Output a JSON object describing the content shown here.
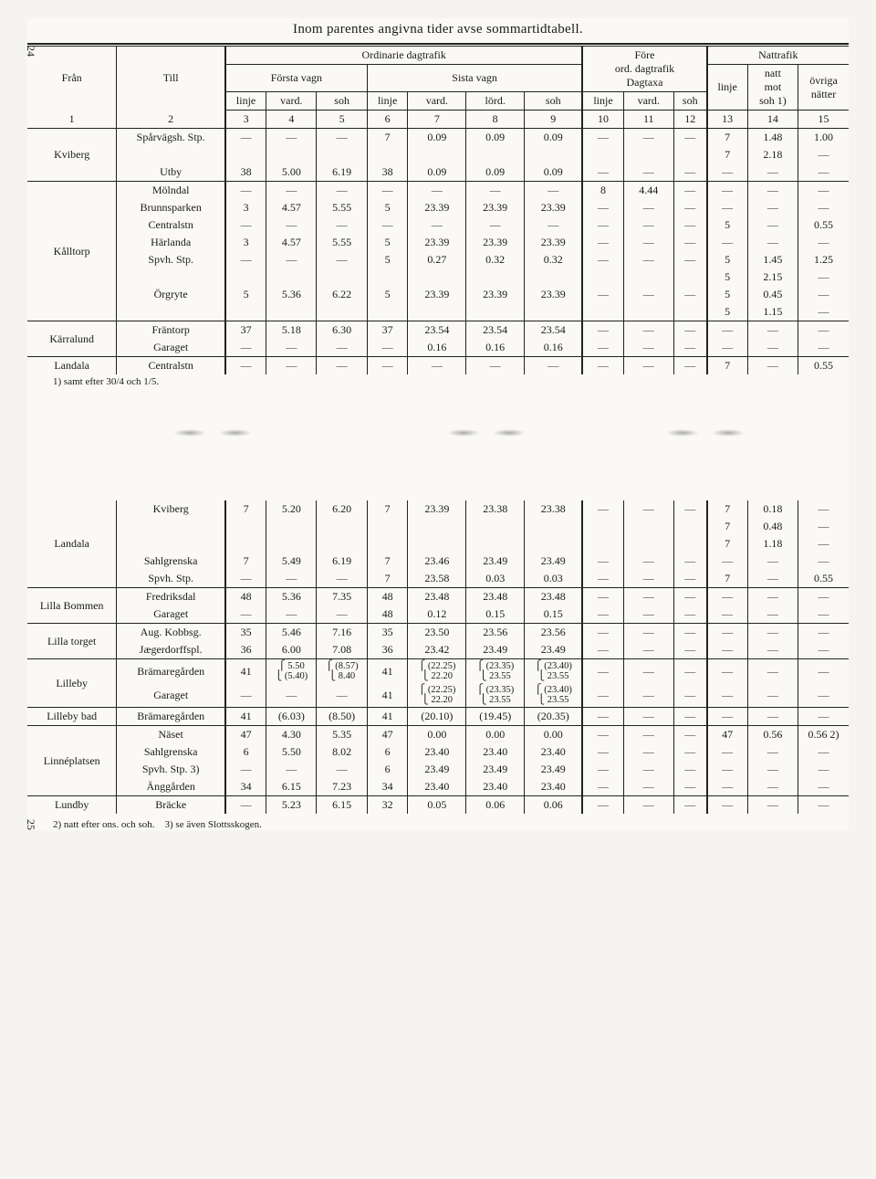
{
  "caption": "Inom parentes angivna tider avse sommartidtabell.",
  "page_left": "24",
  "page_bottom": "25",
  "headers": {
    "fran": "Från",
    "till": "Till",
    "ord": "Ordinarie dagtrafik",
    "forsta": "Första vagn",
    "sista": "Sista vagn",
    "fore1": "Före",
    "fore2": "ord. dagtrafik",
    "fore3": "Dagtaxa",
    "natt": "Nattrafik",
    "linje": "linje",
    "vard": "vard.",
    "soh": "soh",
    "lord": "lörd.",
    "nattmot1": "natt",
    "nattmot2": "mot",
    "nattmot3": "soh 1)",
    "ovriga1": "övriga",
    "ovriga2": "nätter",
    "nums": [
      "1",
      "2",
      "3",
      "4",
      "5",
      "6",
      "7",
      "8",
      "9",
      "10",
      "11",
      "12",
      "13",
      "14",
      "15"
    ]
  },
  "footnote_top": "1) samt efter 30/4 och 1/5.",
  "footnote_bot_a": "2) natt efter ons. och soh.",
  "footnote_bot_b": "3) se även Slottsskogen.",
  "groups_top": [
    {
      "from": "Kviberg",
      "rows": [
        {
          "till": "Spårvägsh. Stp.",
          "c": [
            "—",
            "—",
            "—",
            "7",
            "0.09",
            "0.09",
            "0.09",
            "—",
            "—",
            "—",
            "7",
            "1.48",
            "1.00"
          ]
        },
        {
          "till": "",
          "c": [
            "",
            "",
            "",
            "",
            "",
            "",
            "",
            "",
            "",
            "",
            "7",
            "2.18",
            "—"
          ]
        },
        {
          "till": "Utby",
          "c": [
            "38",
            "5.00",
            "6.19",
            "38",
            "0.09",
            "0.09",
            "0.09",
            "—",
            "—",
            "—",
            "—",
            "—",
            "—"
          ]
        }
      ]
    },
    {
      "from": "Kålltorp",
      "rows": [
        {
          "till": "Mölndal",
          "c": [
            "—",
            "—",
            "—",
            "—",
            "—",
            "—",
            "—",
            "8",
            "4.44",
            "—",
            "—",
            "—",
            "—"
          ]
        },
        {
          "till": "Brunnsparken",
          "c": [
            "3",
            "4.57",
            "5.55",
            "5",
            "23.39",
            "23.39",
            "23.39",
            "—",
            "—",
            "—",
            "—",
            "—",
            "—"
          ]
        },
        {
          "till": "Centralstn",
          "c": [
            "—",
            "—",
            "—",
            "—",
            "—",
            "—",
            "—",
            "—",
            "—",
            "—",
            "5",
            "—",
            "0.55"
          ]
        },
        {
          "till": "Härlanda",
          "c": [
            "3",
            "4.57",
            "5.55",
            "5",
            "23.39",
            "23.39",
            "23.39",
            "—",
            "—",
            "—",
            "—",
            "—",
            "—"
          ]
        },
        {
          "till": "Spvh.  Stp.",
          "c": [
            "—",
            "—",
            "—",
            "5",
            "0.27",
            "0.32",
            "0.32",
            "—",
            "—",
            "—",
            "5",
            "1.45",
            "1.25"
          ]
        },
        {
          "till": "",
          "c": [
            "",
            "",
            "",
            "",
            "",
            "",
            "",
            "",
            "",
            "",
            "5",
            "2.15",
            "—"
          ]
        },
        {
          "till": "Örgryte",
          "c": [
            "5",
            "5.36",
            "6.22",
            "5",
            "23.39",
            "23.39",
            "23.39",
            "—",
            "—",
            "—",
            "5",
            "0.45",
            "—"
          ]
        },
        {
          "till": "",
          "c": [
            "",
            "",
            "",
            "",
            "",
            "",
            "",
            "",
            "",
            "",
            "5",
            "1.15",
            "—"
          ]
        }
      ]
    },
    {
      "from": "Kärralund",
      "rows": [
        {
          "till": "Fräntorp",
          "c": [
            "37",
            "5.18",
            "6.30",
            "37",
            "23.54",
            "23.54",
            "23.54",
            "—",
            "—",
            "—",
            "—",
            "—",
            "—"
          ]
        },
        {
          "till": "Garaget",
          "c": [
            "—",
            "—",
            "—",
            "—",
            "0.16",
            "0.16",
            "0.16",
            "—",
            "—",
            "—",
            "—",
            "—",
            "—"
          ]
        }
      ]
    },
    {
      "from": "Landala",
      "rows": [
        {
          "till": "Centralstn",
          "c": [
            "—",
            "—",
            "—",
            "—",
            "—",
            "—",
            "—",
            "—",
            "—",
            "—",
            "7",
            "—",
            "0.55"
          ]
        }
      ]
    }
  ],
  "groups_bot": [
    {
      "from": "Landala",
      "rows": [
        {
          "till": "Kviberg",
          "c": [
            "7",
            "5.20",
            "6.20",
            "7",
            "23.39",
            "23.38",
            "23.38",
            "—",
            "—",
            "—",
            "7",
            "0.18",
            "—"
          ]
        },
        {
          "till": "",
          "c": [
            "",
            "",
            "",
            "",
            "",
            "",
            "",
            "",
            "",
            "",
            "7",
            "0.48",
            "—"
          ]
        },
        {
          "till": "",
          "c": [
            "",
            "",
            "",
            "",
            "",
            "",
            "",
            "",
            "",
            "",
            "7",
            "1.18",
            "—"
          ]
        },
        {
          "till": "Sahlgrenska",
          "c": [
            "7",
            "5.49",
            "6.19",
            "7",
            "23.46",
            "23.49",
            "23.49",
            "—",
            "—",
            "—",
            "—",
            "—",
            "—"
          ]
        },
        {
          "till": "Spvh.  Stp.",
          "c": [
            "—",
            "—",
            "—",
            "7",
            "23.58",
            "0.03",
            "0.03",
            "—",
            "—",
            "—",
            "7",
            "—",
            "0.55"
          ]
        }
      ]
    },
    {
      "from": "Lilla Bommen",
      "rows": [
        {
          "till": "Fredriksdal",
          "c": [
            "48",
            "5.36",
            "7.35",
            "48",
            "23.48",
            "23.48",
            "23.48",
            "—",
            "—",
            "—",
            "—",
            "—",
            "—"
          ]
        },
        {
          "till": "Garaget",
          "c": [
            "—",
            "—",
            "—",
            "48",
            "0.12",
            "0.15",
            "0.15",
            "—",
            "—",
            "—",
            "—",
            "—",
            "—"
          ]
        }
      ]
    },
    {
      "from": "Lilla torget",
      "rows": [
        {
          "till": "Aug.  Kobbsg.",
          "c": [
            "35",
            "5.46",
            "7.16",
            "35",
            "23.50",
            "23.56",
            "23.56",
            "—",
            "—",
            "—",
            "—",
            "—",
            "—"
          ]
        },
        {
          "till": "Jægerdorffspl.",
          "c": [
            "36",
            "6.00",
            "7.08",
            "36",
            "23.42",
            "23.49",
            "23.49",
            "—",
            "—",
            "—",
            "—",
            "—",
            "—"
          ]
        }
      ]
    },
    {
      "from": "Lilleby",
      "rows": [
        {
          "till": "Brämaregården",
          "c": [
            "41",
            "BRACE:5.50|(5.40)",
            "BRACE:(8.57)|8.40",
            "41",
            "BRACE:(22.25)|22.20",
            "BRACE:(23.35)|23.55",
            "BRACE:(23.40)|23.55",
            "—",
            "—",
            "—",
            "—",
            "—",
            "—"
          ]
        },
        {
          "till": "Garaget",
          "c": [
            "—",
            "—",
            "—",
            "41",
            "BRACE:(22.25)|22.20",
            "BRACE:(23.35)|23.55",
            "BRACE:(23.40)|23.55",
            "—",
            "—",
            "—",
            "—",
            "—",
            "—"
          ]
        }
      ]
    },
    {
      "from": "Lilleby bad",
      "rows": [
        {
          "till": "Brämaregården",
          "c": [
            "41",
            "(6.03)",
            "(8.50)",
            "41",
            "(20.10)",
            "(19.45)",
            "(20.35)",
            "—",
            "—",
            "—",
            "—",
            "—",
            "—"
          ]
        }
      ]
    },
    {
      "from": "Linnéplatsen",
      "rows": [
        {
          "till": "Näset",
          "c": [
            "47",
            "4.30",
            "5.35",
            "47",
            "0.00",
            "0.00",
            "0.00",
            "—",
            "—",
            "—",
            "47",
            "0.56",
            "0.56 2)"
          ]
        },
        {
          "till": "Sahlgrenska",
          "c": [
            "6",
            "5.50",
            "8.02",
            "6",
            "23.40",
            "23.40",
            "23.40",
            "—",
            "—",
            "—",
            "—",
            "—",
            "—"
          ]
        },
        {
          "till": "Spvh.  Stp. 3)",
          "c": [
            "—",
            "—",
            "—",
            "6",
            "23.49",
            "23.49",
            "23.49",
            "—",
            "—",
            "—",
            "—",
            "—",
            "—"
          ]
        },
        {
          "till": "Änggården",
          "c": [
            "34",
            "6.15",
            "7.23",
            "34",
            "23.40",
            "23.40",
            "23.40",
            "—",
            "—",
            "—",
            "—",
            "—",
            "—"
          ]
        }
      ]
    },
    {
      "from": "Lundby",
      "rows": [
        {
          "till": "Bräcke",
          "c": [
            "—",
            "5.23",
            "6.15",
            "32",
            "0.05",
            "0.06",
            "0.06",
            "—",
            "—",
            "—",
            "—",
            "—",
            "—"
          ]
        }
      ]
    }
  ]
}
